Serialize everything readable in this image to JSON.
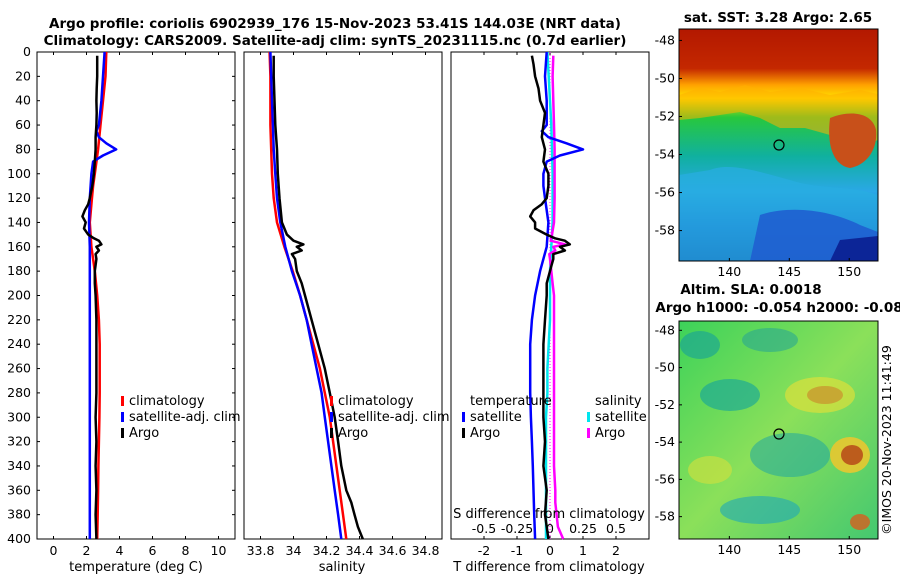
{
  "title": {
    "line1": "Argo profile: coriolis 6902939_176 15-Nov-2023 53.41S 144.03E (NRT data)",
    "line2": "Climatology: CARS2009. Satellite-adj clim: synTS_20231115.nc (0.7d earlier)"
  },
  "colors": {
    "climatology": "#ff0000",
    "satellite": "#0000ff",
    "argo": "#000000",
    "sat_salinity": "#00e5ee",
    "argo_salinity": "#ff00ff"
  },
  "chart_data": [
    {
      "id": "temperature",
      "type": "line",
      "xlabel": "temperature (deg C)",
      "xlim": [
        -1,
        11
      ],
      "ylim": [
        0,
        400
      ],
      "yticks": [
        "0",
        "20",
        "40",
        "60",
        "80",
        "100",
        "120",
        "140",
        "160",
        "180",
        "200",
        "220",
        "240",
        "260",
        "280",
        "300",
        "320",
        "340",
        "360",
        "380",
        "400"
      ],
      "xticks": [
        "0",
        "2",
        "4",
        "6",
        "8",
        "10"
      ],
      "legend": [
        "climatology",
        "satellite-adj. clim",
        "Argo"
      ],
      "series": [
        {
          "name": "climatology",
          "depth": [
            0,
            20,
            40,
            60,
            80,
            100,
            110,
            125,
            140,
            160,
            180,
            200,
            220,
            240,
            260,
            280,
            300,
            320,
            340,
            360,
            380,
            400
          ],
          "values": [
            3.2,
            3.15,
            3.0,
            2.85,
            2.7,
            2.5,
            2.4,
            2.3,
            2.2,
            2.3,
            2.5,
            2.65,
            2.75,
            2.8,
            2.8,
            2.8,
            2.78,
            2.75,
            2.72,
            2.7,
            2.68,
            2.65
          ]
        },
        {
          "name": "satellite-adj. clim",
          "depth": [
            0,
            20,
            40,
            60,
            65,
            70,
            75,
            80,
            85,
            90,
            100,
            120,
            140,
            160,
            180,
            200,
            240,
            280,
            320,
            360,
            400
          ],
          "values": [
            3.1,
            3.0,
            2.9,
            2.75,
            2.6,
            2.75,
            3.2,
            3.8,
            3.0,
            2.4,
            2.3,
            2.2,
            2.15,
            2.2,
            2.2,
            2.2,
            2.2,
            2.2,
            2.2,
            2.2,
            2.2
          ]
        },
        {
          "name": "Argo",
          "depth": [
            3,
            10,
            20,
            30,
            40,
            50,
            60,
            70,
            80,
            90,
            100,
            110,
            120,
            125,
            130,
            135,
            140,
            145,
            150,
            153,
            155,
            158,
            160,
            163,
            166,
            170,
            175,
            180,
            190,
            200,
            220,
            240,
            260,
            280,
            300,
            320,
            340,
            360,
            380,
            400
          ],
          "values": [
            2.65,
            2.65,
            2.65,
            2.62,
            2.6,
            2.62,
            2.6,
            2.55,
            2.55,
            2.5,
            2.45,
            2.35,
            2.2,
            2.1,
            1.9,
            1.75,
            1.95,
            1.85,
            2.1,
            2.45,
            2.75,
            2.9,
            2.6,
            2.75,
            2.55,
            2.6,
            2.55,
            2.5,
            2.5,
            2.55,
            2.6,
            2.6,
            2.6,
            2.6,
            2.55,
            2.6,
            2.55,
            2.6,
            2.55,
            2.6
          ]
        }
      ]
    },
    {
      "id": "salinity",
      "type": "line",
      "xlabel": "salinity",
      "xlim": [
        33.7,
        34.9
      ],
      "ylim": [
        0,
        400
      ],
      "xticks": [
        "33.8",
        "34",
        "34.2",
        "34.4",
        "34.6",
        "34.8"
      ],
      "legend": [
        "climatology",
        "satellite-adj. clim",
        "Argo"
      ],
      "series": [
        {
          "name": "climatology",
          "depth": [
            0,
            20,
            40,
            60,
            80,
            100,
            120,
            140,
            160,
            180,
            200,
            220,
            240,
            260,
            280,
            300,
            320,
            340,
            360,
            380,
            400
          ],
          "values": [
            33.855,
            33.86,
            33.86,
            33.86,
            33.865,
            33.87,
            33.88,
            33.9,
            33.945,
            33.995,
            34.04,
            34.08,
            34.12,
            34.16,
            34.19,
            34.22,
            34.24,
            34.26,
            34.28,
            34.3,
            34.32
          ]
        },
        {
          "name": "satellite-adj. clim",
          "depth": [
            0,
            20,
            40,
            60,
            80,
            100,
            120,
            140,
            160,
            180,
            200,
            220,
            240,
            260,
            280,
            300,
            320,
            340,
            360,
            380,
            400
          ],
          "values": [
            33.86,
            33.865,
            33.87,
            33.875,
            33.88,
            33.89,
            33.9,
            33.92,
            33.95,
            33.99,
            34.04,
            34.08,
            34.11,
            34.14,
            34.17,
            34.19,
            34.21,
            34.23,
            34.25,
            34.27,
            34.29
          ]
        },
        {
          "name": "Argo",
          "depth": [
            3,
            20,
            40,
            60,
            80,
            100,
            120,
            140,
            150,
            155,
            158,
            160,
            163,
            166,
            170,
            180,
            190,
            200,
            220,
            240,
            260,
            280,
            300,
            320,
            340,
            360,
            370,
            380,
            390,
            400
          ],
          "values": [
            33.88,
            33.88,
            33.885,
            33.89,
            33.9,
            33.905,
            33.915,
            33.93,
            33.96,
            34.0,
            34.06,
            34.02,
            34.05,
            33.99,
            34.01,
            34.02,
            34.05,
            34.07,
            34.11,
            34.15,
            34.19,
            34.22,
            34.25,
            34.27,
            34.29,
            34.32,
            34.35,
            34.37,
            34.39,
            34.42
          ]
        }
      ]
    },
    {
      "id": "difference",
      "type": "line",
      "xlabel": "T difference from climatology",
      "top_xlabel": "S difference from climatology",
      "xlim": [
        -3,
        3
      ],
      "ylim": [
        0,
        400
      ],
      "xticks": [
        "-2",
        "-1",
        "0",
        "1",
        "2"
      ],
      "top_xticks": [
        "-0.5",
        "-0.25",
        "0",
        "0.25",
        "0.5"
      ],
      "legend_temperature_title": "temperature",
      "legend_salinity_title": "salinity",
      "legend_temperature": [
        "satellite",
        "Argo"
      ],
      "legend_salinity": [
        "satellite",
        "Argo"
      ],
      "series": [
        {
          "name": "T satellite",
          "depth": [
            0,
            20,
            40,
            60,
            65,
            70,
            75,
            80,
            85,
            90,
            100,
            110,
            120,
            140,
            160,
            180,
            200,
            220,
            240,
            260,
            280,
            300,
            320,
            340,
            360,
            380,
            400
          ],
          "values": [
            -0.1,
            -0.15,
            -0.1,
            -0.1,
            -0.25,
            -0.05,
            0.5,
            1.0,
            0.3,
            -0.1,
            -0.2,
            -0.2,
            -0.15,
            -0.05,
            -0.1,
            -0.3,
            -0.45,
            -0.55,
            -0.6,
            -0.6,
            -0.6,
            -0.58,
            -0.55,
            -0.52,
            -0.5,
            -0.48,
            -0.45
          ]
        },
        {
          "name": "T Argo",
          "depth": [
            3,
            10,
            20,
            30,
            40,
            50,
            60,
            70,
            80,
            90,
            100,
            110,
            120,
            125,
            130,
            135,
            140,
            145,
            150,
            153,
            155,
            158,
            160,
            163,
            166,
            170,
            175,
            180,
            190,
            200,
            220,
            240,
            260,
            280,
            300,
            320,
            340,
            360,
            380,
            400
          ],
          "values": [
            -0.55,
            -0.5,
            -0.45,
            -0.35,
            -0.3,
            -0.15,
            -0.2,
            -0.25,
            -0.15,
            -0.2,
            -0.05,
            -0.05,
            -0.1,
            -0.25,
            -0.5,
            -0.6,
            -0.45,
            -0.45,
            -0.1,
            0.15,
            0.45,
            0.6,
            0.3,
            0.45,
            0.1,
            0.1,
            0.05,
            0.0,
            -0.1,
            -0.1,
            -0.15,
            -0.2,
            -0.2,
            -0.2,
            -0.2,
            -0.15,
            -0.2,
            -0.1,
            -0.15,
            -0.05
          ]
        },
        {
          "name": "S satellite",
          "depth": [
            0,
            20,
            40,
            60,
            80,
            100,
            120,
            140,
            160,
            180,
            200,
            220,
            240,
            260,
            280,
            300,
            320,
            340,
            360,
            380,
            400
          ],
          "values": [
            -0.02,
            -0.01,
            0.0,
            0.01,
            0.015,
            0.02,
            0.02,
            0.02,
            0.01,
            0.0,
            0.0,
            0.0,
            -0.01,
            -0.02,
            -0.02,
            -0.03,
            -0.03,
            -0.03,
            -0.03,
            -0.03,
            -0.03
          ]
        },
        {
          "name": "S Argo",
          "depth": [
            3,
            20,
            40,
            60,
            80,
            100,
            120,
            140,
            150,
            155,
            158,
            160,
            163,
            166,
            170,
            180,
            190,
            200,
            220,
            240,
            260,
            280,
            300,
            320,
            340,
            360,
            370,
            380,
            390,
            400
          ],
          "values": [
            0.025,
            0.02,
            0.025,
            0.03,
            0.035,
            0.035,
            0.035,
            0.03,
            0.015,
            0.005,
            0.115,
            0.025,
            0.04,
            -0.005,
            0.0,
            0.01,
            0.02,
            0.03,
            0.03,
            0.03,
            0.03,
            0.03,
            0.03,
            0.03,
            0.03,
            0.04,
            0.04,
            0.05,
            0.06,
            0.1
          ]
        }
      ]
    },
    {
      "id": "sst_map",
      "type": "heatmap",
      "title": "sat. SST: 3.28 Argo: 2.65",
      "xticks": [
        "140",
        "145",
        "150"
      ],
      "yticks": [
        "-48",
        "-50",
        "-52",
        "-54",
        "-56",
        "-58"
      ],
      "marker_lon": 144.03,
      "marker_lat": -53.41
    },
    {
      "id": "sla_map",
      "type": "heatmap",
      "title_line1": "Altim. SLA: 0.0018",
      "title_line2": "Argo h1000: -0.054 h2000: -0.08",
      "xticks": [
        "140",
        "145",
        "150"
      ],
      "yticks": [
        "-48",
        "-50",
        "-52",
        "-54",
        "-56",
        "-58"
      ],
      "marker_lon": 144.03,
      "marker_lat": -53.41
    }
  ],
  "stamp": "©IMOS 20-Nov-2023 11:41:49"
}
